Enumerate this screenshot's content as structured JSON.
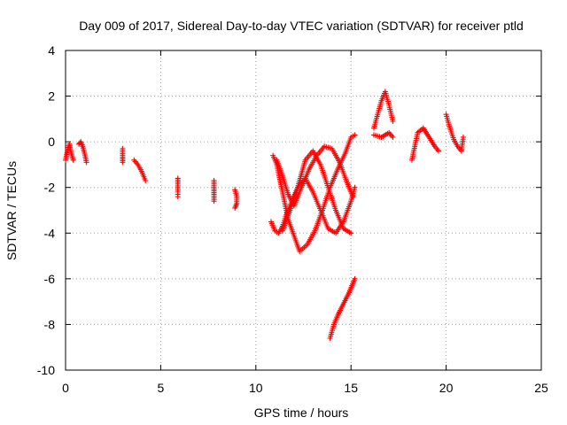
{
  "chart_data": {
    "type": "scatter",
    "title": "Day 009 of 2017, Sidereal Day-to-day VTEC variation (SDTVAR) for receiver ptld",
    "xlabel": "GPS time / hours",
    "ylabel": "SDTVAR / TECUs",
    "xlim": [
      0,
      25
    ],
    "ylim": [
      -10,
      4
    ],
    "xticks": [
      0,
      5,
      10,
      15,
      20,
      25
    ],
    "yticks": [
      -10,
      -8,
      -6,
      -4,
      -2,
      0,
      2,
      4
    ],
    "grid": true,
    "marker": "plus",
    "color": "#ff0000",
    "segments": [
      {
        "x": [
          0.0,
          0.1,
          0.2,
          0.3,
          0.4
        ],
        "y": [
          -0.8,
          -0.4,
          -0.1,
          -0.5,
          -0.8
        ]
      },
      {
        "x": [
          0.7,
          0.8,
          0.9,
          1.0,
          1.1
        ],
        "y": [
          -0.1,
          0.0,
          -0.2,
          -0.5,
          -0.9
        ]
      },
      {
        "x": [
          3.0,
          3.0,
          3.0
        ],
        "y": [
          -0.3,
          -0.6,
          -0.9
        ]
      },
      {
        "x": [
          3.6,
          3.8,
          4.0,
          4.2
        ],
        "y": [
          -0.8,
          -1.0,
          -1.3,
          -1.7
        ]
      },
      {
        "x": [
          5.9,
          5.9,
          5.9,
          5.9
        ],
        "y": [
          -1.6,
          -1.9,
          -2.2,
          -2.4
        ]
      },
      {
        "x": [
          7.8,
          7.8,
          7.8,
          7.8
        ],
        "y": [
          -1.7,
          -2.0,
          -2.3,
          -2.6
        ]
      },
      {
        "x": [
          8.9,
          9.0,
          9.0,
          8.9
        ],
        "y": [
          -2.1,
          -2.4,
          -2.7,
          -2.9
        ]
      },
      {
        "x": [
          10.9,
          11.1,
          11.3,
          11.5,
          11.7,
          12.0,
          12.3,
          12.7,
          13.1,
          13.5,
          13.9,
          14.3,
          14.7,
          15.0,
          15.2
        ],
        "y": [
          -0.6,
          -1.0,
          -1.8,
          -2.6,
          -3.4,
          -4.1,
          -4.8,
          -4.5,
          -3.9,
          -3.0,
          -2.0,
          -1.2,
          -0.5,
          0.2,
          0.3
        ]
      },
      {
        "x": [
          10.8,
          11.0,
          11.2,
          11.4,
          11.6,
          11.9,
          12.2,
          12.6,
          13.0,
          13.4,
          13.8,
          14.2,
          14.6,
          15.0,
          15.2
        ],
        "y": [
          -3.5,
          -3.9,
          -4.0,
          -3.7,
          -3.2,
          -2.6,
          -2.0,
          -1.6,
          -2.2,
          -3.0,
          -3.8,
          -4.0,
          -3.5,
          -2.6,
          -2.0
        ]
      },
      {
        "x": [
          11.4,
          11.8,
          12.2,
          12.6,
          13.0,
          13.4,
          13.8,
          14.2,
          14.6,
          15.0
        ],
        "y": [
          -3.9,
          -3.0,
          -2.0,
          -0.8,
          -0.4,
          -1.0,
          -2.0,
          -3.0,
          -3.8,
          -4.0
        ]
      },
      {
        "x": [
          11.1,
          11.4,
          11.7,
          12.0,
          12.4,
          12.8,
          13.2,
          13.6,
          14.0,
          14.4,
          14.8,
          15.1
        ],
        "y": [
          -0.8,
          -1.5,
          -2.3,
          -2.8,
          -2.0,
          -1.2,
          -0.6,
          -0.2,
          -0.3,
          -0.9,
          -1.8,
          -2.4
        ]
      },
      {
        "x": [
          13.9,
          14.1,
          14.3,
          14.6,
          14.9,
          15.2
        ],
        "y": [
          -8.6,
          -8.0,
          -7.6,
          -7.1,
          -6.6,
          -6.0
        ]
      },
      {
        "x": [
          16.2,
          16.4,
          16.6,
          16.8,
          17.0,
          17.2
        ],
        "y": [
          0.6,
          1.2,
          1.8,
          2.2,
          1.6,
          0.9
        ]
      },
      {
        "x": [
          16.2,
          16.6,
          17.0,
          17.2
        ],
        "y": [
          0.3,
          0.2,
          0.4,
          0.2
        ]
      },
      {
        "x": [
          18.2,
          18.5,
          18.8,
          19.1,
          19.4,
          19.6
        ],
        "y": [
          -0.8,
          0.4,
          0.6,
          0.2,
          -0.2,
          -0.4
        ]
      },
      {
        "x": [
          20.0,
          20.2,
          20.4,
          20.6,
          20.8,
          20.9
        ],
        "y": [
          1.2,
          0.6,
          0.1,
          -0.2,
          -0.4,
          0.2
        ]
      }
    ]
  }
}
